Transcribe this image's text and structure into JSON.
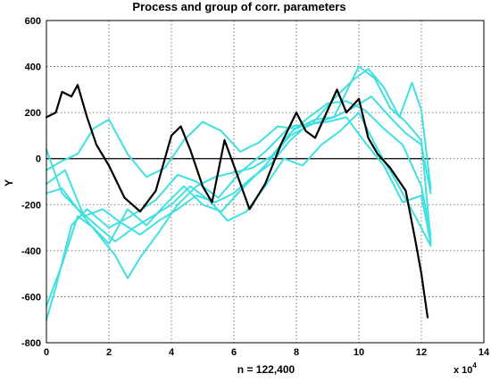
{
  "chart_data": {
    "type": "line",
    "title": "Process and group of corr. parameters",
    "xlabel": "n = 122,400",
    "ylabel": "Y",
    "x_multiplier_label": "x 10",
    "x_multiplier_exponent": "4",
    "xlim": [
      0,
      14
    ],
    "ylim": [
      -800,
      600
    ],
    "x_ticks": [
      0,
      2,
      4,
      6,
      8,
      10,
      12,
      14
    ],
    "y_ticks": [
      -800,
      -600,
      -400,
      -200,
      0,
      200,
      400,
      600
    ],
    "grid": true,
    "zero_line": true,
    "colors": {
      "process": "#000000",
      "group": "#40e0e0",
      "grid": "#555555",
      "zero": "#000000"
    },
    "series": [
      {
        "role": "process",
        "x": [
          0,
          0.3,
          0.5,
          0.8,
          1.0,
          1.3,
          1.6,
          2.0,
          2.5,
          3.0,
          3.5,
          4.0,
          4.3,
          4.6,
          5.0,
          5.3,
          5.7,
          6.0,
          6.5,
          7.0,
          7.5,
          8.0,
          8.3,
          8.6,
          9.0,
          9.3,
          9.6,
          10.0,
          10.3,
          10.6,
          11.0,
          11.5,
          11.8,
          12.0,
          12.2
        ],
        "y": [
          180,
          200,
          290,
          270,
          320,
          180,
          60,
          -30,
          -170,
          -230,
          -140,
          100,
          140,
          40,
          -120,
          -190,
          80,
          -30,
          -220,
          -110,
          60,
          200,
          120,
          90,
          210,
          300,
          200,
          260,
          90,
          20,
          -40,
          -140,
          -350,
          -500,
          -690
        ]
      },
      {
        "role": "group",
        "x": [
          0,
          0.3,
          0.8,
          1.3,
          2.0,
          2.7,
          3.5,
          4.2,
          4.8,
          5.5,
          6.2,
          7.0,
          7.8,
          8.5,
          9.2,
          9.8,
          10.3,
          10.8,
          11.3,
          11.7,
          12.0,
          12.3
        ],
        "y": [
          -700,
          -560,
          -290,
          -220,
          -300,
          -250,
          -180,
          -70,
          -100,
          -170,
          -60,
          30,
          140,
          150,
          260,
          340,
          390,
          310,
          180,
          330,
          210,
          -130
        ]
      },
      {
        "role": "group",
        "x": [
          0,
          0.5,
          1.0,
          1.5,
          2.0,
          2.6,
          3.2,
          3.8,
          4.4,
          5.0,
          5.6,
          6.2,
          7.0,
          7.8,
          8.5,
          9.2,
          10.0,
          10.5,
          11.0,
          11.5,
          12.0,
          12.3
        ],
        "y": [
          -640,
          -460,
          -250,
          -300,
          -370,
          -220,
          -290,
          -200,
          -120,
          -200,
          -230,
          -140,
          -30,
          100,
          150,
          180,
          400,
          350,
          220,
          160,
          80,
          -360
        ]
      },
      {
        "role": "group",
        "x": [
          0,
          0.6,
          1.2,
          1.8,
          2.4,
          3.0,
          3.6,
          4.2,
          4.8,
          5.4,
          6.0,
          6.6,
          7.2,
          7.8,
          8.4,
          9.0,
          9.6,
          10.2,
          10.8,
          11.4,
          12.0,
          12.3
        ],
        "y": [
          -110,
          -50,
          -250,
          -220,
          -280,
          -330,
          -270,
          -220,
          -160,
          -190,
          -150,
          -80,
          -20,
          80,
          150,
          160,
          180,
          70,
          -30,
          -190,
          -160,
          -370
        ]
      },
      {
        "role": "group",
        "x": [
          0,
          0.5,
          1.0,
          1.6,
          2.2,
          2.8,
          3.4,
          4.0,
          4.6,
          5.2,
          5.8,
          6.4,
          7.0,
          7.6,
          8.2,
          8.8,
          9.4,
          10.0,
          10.6,
          11.2,
          11.8,
          12.3
        ],
        "y": [
          40,
          -150,
          -220,
          -290,
          -360,
          -300,
          -250,
          -200,
          -120,
          -180,
          -270,
          -230,
          -120,
          0,
          -30,
          60,
          120,
          200,
          40,
          -100,
          -250,
          -380
        ]
      },
      {
        "role": "group",
        "x": [
          0,
          0.5,
          1.0,
          1.6,
          2.2,
          2.6,
          3.0,
          3.6,
          4.2,
          4.8,
          5.4,
          6.0,
          6.6,
          7.2,
          7.8,
          8.4,
          9.0,
          9.6,
          10.2,
          10.8,
          11.4,
          12.0,
          12.3
        ],
        "y": [
          -150,
          -130,
          -220,
          -320,
          -420,
          -520,
          -430,
          -320,
          -200,
          -120,
          -80,
          -60,
          -40,
          10,
          110,
          180,
          240,
          250,
          210,
          130,
          60,
          -120,
          -330
        ]
      },
      {
        "role": "group",
        "x": [
          0,
          0.5,
          1.0,
          1.5,
          2.0,
          2.6,
          3.2,
          3.8,
          4.4,
          5.0,
          5.6,
          6.2,
          6.8,
          7.4,
          8.0,
          8.6,
          9.2,
          9.8,
          10.4,
          11.0,
          11.5,
          12.0,
          12.3
        ],
        "y": [
          -50,
          -10,
          20,
          130,
          170,
          20,
          -80,
          -40,
          80,
          160,
          120,
          30,
          70,
          140,
          130,
          170,
          180,
          220,
          270,
          180,
          110,
          60,
          -150
        ]
      }
    ]
  }
}
